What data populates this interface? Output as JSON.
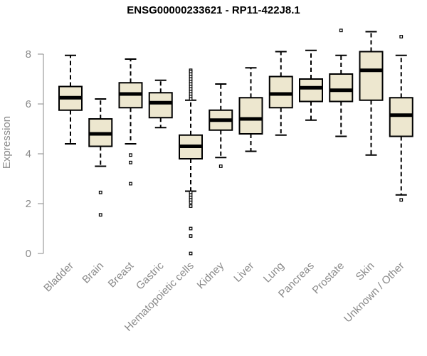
{
  "chart_data": {
    "type": "boxplot",
    "title": "ENSG00000233621 - RP11-422J8.1",
    "ylabel": "Expression",
    "xlabel": "",
    "ylim": [
      0,
      9
    ],
    "yticks": [
      0,
      2,
      4,
      6,
      8
    ],
    "box_fill": "#ede7cf",
    "categories": [
      "Bladder",
      "Brain",
      "Breast",
      "Gastric",
      "Hematopoietic cells",
      "Kidney",
      "Liver",
      "Lung",
      "Pancreas",
      "Prostate",
      "Skin",
      "Unknown / Other"
    ],
    "boxes": [
      {
        "whisker_low": 4.4,
        "q1": 5.75,
        "median": 6.25,
        "q3": 6.7,
        "whisker_high": 7.95,
        "outliers": []
      },
      {
        "whisker_low": 3.5,
        "q1": 4.3,
        "median": 4.8,
        "q3": 5.4,
        "whisker_high": 6.2,
        "outliers": [
          2.45,
          1.55
        ]
      },
      {
        "whisker_low": 4.4,
        "q1": 5.85,
        "median": 6.4,
        "q3": 6.85,
        "whisker_high": 7.8,
        "outliers": [
          3.95,
          3.65,
          2.8
        ]
      },
      {
        "whisker_low": 5.05,
        "q1": 5.45,
        "median": 6.05,
        "q3": 6.45,
        "whisker_high": 6.95,
        "outliers": []
      },
      {
        "whisker_low": 2.5,
        "q1": 3.8,
        "median": 4.3,
        "q3": 4.75,
        "whisker_high": 6.15,
        "outliers": [
          7.35,
          7.3,
          7.2,
          7.1,
          7.0,
          6.9,
          6.8,
          6.7,
          6.6,
          6.5,
          6.4,
          6.3,
          6.2,
          2.45,
          2.35,
          2.25,
          2.15,
          2.05,
          1.9,
          1.0,
          0.7,
          0.0
        ]
      },
      {
        "whisker_low": 3.85,
        "q1": 4.95,
        "median": 5.35,
        "q3": 5.75,
        "whisker_high": 6.8,
        "outliers": [
          3.5
        ]
      },
      {
        "whisker_low": 4.1,
        "q1": 4.8,
        "median": 5.4,
        "q3": 6.25,
        "whisker_high": 7.45,
        "outliers": []
      },
      {
        "whisker_low": 4.75,
        "q1": 5.85,
        "median": 6.4,
        "q3": 7.1,
        "whisker_high": 8.1,
        "outliers": []
      },
      {
        "whisker_low": 5.35,
        "q1": 6.1,
        "median": 6.65,
        "q3": 7.0,
        "whisker_high": 8.15,
        "outliers": []
      },
      {
        "whisker_low": 4.7,
        "q1": 6.1,
        "median": 6.55,
        "q3": 7.2,
        "whisker_high": 7.95,
        "outliers": [
          8.95
        ]
      },
      {
        "whisker_low": 3.95,
        "q1": 6.15,
        "median": 7.35,
        "q3": 8.1,
        "whisker_high": 8.9,
        "outliers": []
      },
      {
        "whisker_low": 2.35,
        "q1": 4.7,
        "median": 5.55,
        "q3": 6.25,
        "whisker_high": 7.95,
        "outliers": [
          8.7,
          2.15
        ]
      }
    ]
  }
}
